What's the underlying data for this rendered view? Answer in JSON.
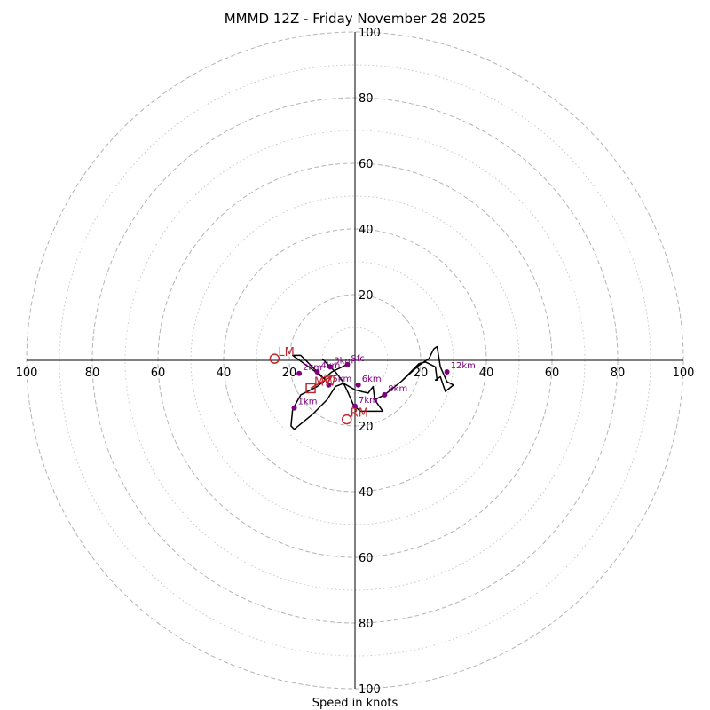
{
  "chart_data": {
    "type": "hodograph",
    "title": "MMMD 12Z - Friday November 28 2025",
    "xlabel": "Speed in knots",
    "units": "knots",
    "range": [
      -100,
      100
    ],
    "rings": {
      "major": [
        20,
        40,
        60,
        80,
        100
      ],
      "minor": [
        10,
        30,
        50,
        70,
        90
      ]
    },
    "tick_labels": {
      "x_left": [
        "100",
        "80",
        "60",
        "40",
        "20"
      ],
      "x_right": [
        "20",
        "40",
        "60",
        "80",
        "100"
      ],
      "y_top": [
        "100",
        "80",
        "60",
        "40",
        "20"
      ],
      "y_bottom": [
        "20",
        "40",
        "60",
        "80",
        "100"
      ]
    },
    "ticks": {
      "x_left": [
        -100,
        -80,
        -60,
        -40,
        -20
      ],
      "x_right": [
        20,
        40,
        60,
        80,
        100
      ],
      "y_top": [
        100,
        80,
        60,
        40,
        20
      ],
      "y_bottom": [
        -20,
        -40,
        -60,
        -80,
        -100
      ]
    },
    "trace": {
      "color": "#000000",
      "points": [
        [
          -2.7,
          -1.4
        ],
        [
          -7.0,
          -3.5
        ],
        [
          -9.5,
          -5.5
        ],
        [
          -12.0,
          -3.5
        ],
        [
          -15.5,
          -1.0
        ],
        [
          -19.0,
          1.5
        ],
        [
          -16.5,
          1.5
        ],
        [
          -13.0,
          -2.0
        ],
        [
          -9.0,
          -6.0
        ],
        [
          -11.5,
          -8.0
        ],
        [
          -16.5,
          -10.5
        ],
        [
          -19.0,
          -15.0
        ],
        [
          -19.5,
          -20.0
        ],
        [
          -18.5,
          -21.0
        ],
        [
          -13.0,
          -16.5
        ],
        [
          -8.5,
          -12.0
        ],
        [
          -6.0,
          -8.0
        ],
        [
          -3.5,
          -7.0
        ],
        [
          0.0,
          -9.0
        ],
        [
          4.0,
          -10.0
        ],
        [
          5.5,
          -8.0
        ],
        [
          6.0,
          -12.0
        ],
        [
          9.0,
          -10.5
        ],
        [
          14.0,
          -6.5
        ],
        [
          19.5,
          -1.5
        ],
        [
          22.5,
          0.5
        ],
        [
          24.0,
          3.5
        ],
        [
          25.0,
          4.2
        ],
        [
          26.0,
          -2.0
        ],
        [
          28.0,
          -6.5
        ],
        [
          30.0,
          -7.5
        ],
        [
          27.5,
          -9.5
        ],
        [
          26.0,
          -5.0
        ],
        [
          24.5,
          -6.0
        ],
        [
          25.0,
          -6.0
        ],
        [
          24.5,
          -2.0
        ],
        [
          21.5,
          -0.5
        ],
        [
          19.5,
          -1.0
        ],
        [
          14.0,
          -6.5
        ],
        [
          9.0,
          -10.5
        ],
        [
          6.0,
          -12.0
        ],
        [
          8.5,
          -15.5
        ],
        [
          1.5,
          -15.5
        ],
        [
          -0.5,
          -13.5
        ],
        [
          -2.5,
          -9.0
        ],
        [
          -4.0,
          -6.0
        ],
        [
          -6.0,
          -3.5
        ],
        [
          -8.5,
          -1.0
        ],
        [
          -10.0,
          0.5
        ]
      ]
    },
    "heights": [
      {
        "label": "Sfc",
        "u": -2.3,
        "v": -1.3
      },
      {
        "label": "1km",
        "u": -18.5,
        "v": -14.5
      },
      {
        "label": "2km",
        "u": -17.0,
        "v": -4.0
      },
      {
        "label": "3km",
        "u": -7.5,
        "v": -2.0
      },
      {
        "label": "4km",
        "u": -11.5,
        "v": -3.5
      },
      {
        "label": "5km",
        "u": -8.0,
        "v": -7.5
      },
      {
        "label": "6km",
        "u": 1.0,
        "v": -7.5
      },
      {
        "label": "7km",
        "u": 0.0,
        "v": -14.0
      },
      {
        "label": "8km",
        "u": 9.0,
        "v": -10.5
      },
      {
        "label": "12km",
        "u": 28.0,
        "v": -3.5
      }
    ],
    "height_marker_color": "#800080",
    "motion_markers": [
      {
        "label": "LM",
        "u": -24.5,
        "v": 0.5,
        "shape": "circle"
      },
      {
        "label": "RM",
        "u": -2.5,
        "v": -18.0,
        "shape": "circle"
      },
      {
        "label": "MW",
        "u": -13.5,
        "v": -8.5,
        "shape": "square"
      }
    ],
    "motion_color": "#c0272d",
    "arrow": {
      "from": [
        -13.5,
        -8.5
      ],
      "to": [
        -7.0,
        -4.8
      ]
    }
  }
}
